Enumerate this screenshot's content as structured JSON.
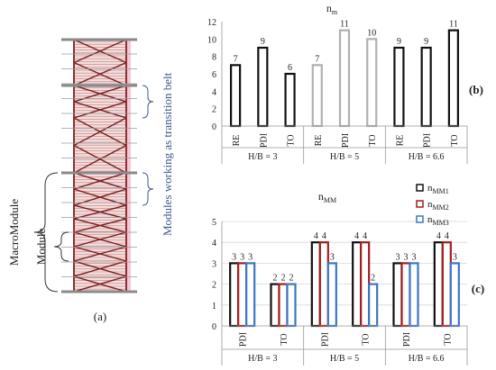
{
  "colors": {
    "frame_gray": "#8a8a8a",
    "brace_red": "#7a1e1e",
    "transition_pink": "#f6c7d3",
    "annotation_blue": "#3e5a8a",
    "bar_black": "#111111",
    "bar_gray": "#b0b0b0",
    "bar_red": "#a51c1c",
    "bar_blue": "#3a76c4"
  },
  "panel_a": {
    "label": "(a)",
    "macromodule_label": "MacroModule",
    "module_label": "Module",
    "transition_label": "Modules working as transition belt"
  },
  "chart_data": [
    {
      "type": "bar",
      "panel_label": "(b)",
      "title": "n",
      "title_sub": "m",
      "ylim": [
        0,
        12
      ],
      "yticks": [
        0,
        2,
        4,
        6,
        8,
        10,
        12
      ],
      "grid": false,
      "categories": [
        "RE",
        "PDI",
        "TO",
        "RE",
        "PDI",
        "TO",
        "RE",
        "PDI",
        "TO"
      ],
      "groups": [
        "H/B = 3",
        "H/B = 5",
        "H/B = 6.6"
      ],
      "values": [
        7,
        9,
        6,
        7,
        11,
        10,
        9,
        9,
        11
      ],
      "value_labels": [
        "7",
        "9",
        "6",
        "7",
        "11",
        "10",
        "9",
        "9",
        "11"
      ],
      "bar_styles": [
        "black",
        "black",
        "black",
        "gray",
        "gray",
        "gray",
        "black",
        "black",
        "black"
      ]
    },
    {
      "type": "bar",
      "panel_label": "(c)",
      "title": "n",
      "title_sub": "MM",
      "ylim": [
        0,
        5
      ],
      "yticks": [
        0,
        1,
        2,
        3,
        4,
        5
      ],
      "grid": true,
      "legend_position": "top-right",
      "categories": [
        "PDI",
        "TO",
        "PDI",
        "TO",
        "PDI",
        "TO"
      ],
      "groups": [
        "H/B = 3",
        "H/B = 5",
        "H/B = 6.6"
      ],
      "series": [
        {
          "name": "n",
          "name_sub": "MM1",
          "style": "black",
          "values": [
            3,
            2,
            4,
            4,
            3,
            4
          ],
          "labels": [
            "3",
            "2",
            "4",
            "4",
            "3",
            "4"
          ]
        },
        {
          "name": "n",
          "name_sub": "MM2",
          "style": "red",
          "values": [
            3,
            2,
            4,
            4,
            3,
            4
          ],
          "labels": [
            "3",
            "2",
            "4",
            "4",
            "3",
            "4"
          ]
        },
        {
          "name": "n",
          "name_sub": "MM3",
          "style": "blue",
          "values": [
            3,
            2,
            3,
            2,
            3,
            3
          ],
          "labels": [
            "3",
            "2",
            "3",
            "2",
            "3",
            "3"
          ]
        }
      ]
    }
  ]
}
